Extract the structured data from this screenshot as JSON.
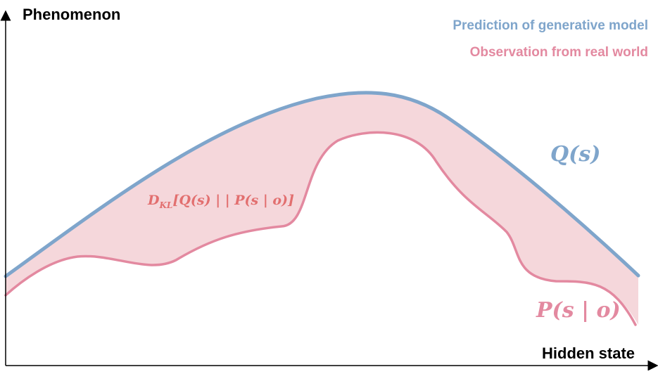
{
  "axes": {
    "y_title": "Phenomenon",
    "x_title": "Hidden state"
  },
  "legend": {
    "prediction": "Prediction of generative model",
    "observation": "Observation from real world"
  },
  "curves": {
    "q_label": "Q(s)",
    "p_label": "P(s | o)",
    "divergence_label_main": "D",
    "divergence_label_sub": "KL",
    "divergence_label_rest": "[Q(s) | | P(s | o)]"
  },
  "colors": {
    "prediction": "#7fa5cb",
    "observation": "#e389a0",
    "fill": "#f5d7db",
    "divergence_text": "#e26f6f",
    "axis": "#000000"
  }
}
